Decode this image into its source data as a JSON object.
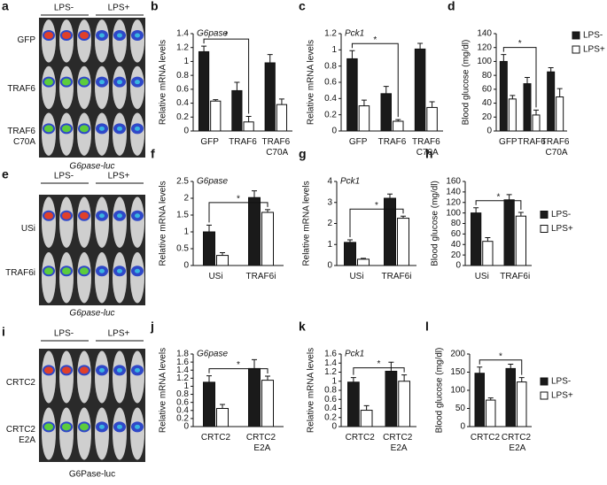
{
  "image_panels": [
    {
      "letter": "a",
      "groups": [
        "LPS-",
        "LPS+"
      ],
      "rows": [
        "GFP",
        "TRAF6",
        "TRAF6 C70A"
      ],
      "caption": "G6pase-luc"
    },
    {
      "letter": "e",
      "groups": [
        "LPS-",
        "LPS+"
      ],
      "rows": [
        "USi",
        "TRAF6i"
      ],
      "caption": "G6pase-luc"
    },
    {
      "letter": "i",
      "groups": [
        "LPS-",
        "LPS+"
      ],
      "rows": [
        "CRTC2",
        "CRTC2 E2A"
      ],
      "caption": "G6Pase-luc"
    }
  ],
  "chart_data": [
    {
      "type": "bar",
      "letter": "b",
      "title": "G6pase",
      "ylabel": "Relative mRNA levels",
      "categories": [
        "GFP",
        "TRAF6",
        "TRAF6 C70A"
      ],
      "series": [
        {
          "name": "LPS-",
          "color": "#1a1a1a",
          "values": [
            1.14,
            0.58,
            0.98
          ],
          "errors": [
            0.08,
            0.12,
            0.12
          ]
        },
        {
          "name": "LPS+",
          "color": "#ffffff",
          "values": [
            0.43,
            0.13,
            0.38
          ],
          "errors": [
            0.02,
            0.08,
            0.08
          ]
        }
      ],
      "ylim": [
        0,
        1.4
      ],
      "yticks": [
        0,
        0.2,
        0.4,
        0.6,
        0.8,
        1,
        1.2,
        1.4
      ],
      "annotation": "*"
    },
    {
      "type": "bar",
      "letter": "c",
      "title": "Pck1",
      "ylabel": "Relative mRNA levels",
      "categories": [
        "GFP",
        "TRAF6",
        "TRAF6 C70A"
      ],
      "series": [
        {
          "name": "LPS-",
          "color": "#1a1a1a",
          "values": [
            0.89,
            0.46,
            1.01
          ],
          "errors": [
            0.1,
            0.09,
            0.07
          ]
        },
        {
          "name": "LPS+",
          "color": "#ffffff",
          "values": [
            0.31,
            0.12,
            0.29
          ],
          "errors": [
            0.07,
            0.02,
            0.07
          ]
        }
      ],
      "ylim": [
        0,
        1.2
      ],
      "yticks": [
        0,
        0.2,
        0.4,
        0.6,
        0.8,
        1,
        1.2
      ],
      "annotation": "*"
    },
    {
      "type": "bar",
      "letter": "d",
      "ylabel": "Blood glucose (mg/dl)",
      "categories": [
        "GFP",
        "TRAF6",
        "TRAF6 C70A"
      ],
      "series": [
        {
          "name": "LPS-",
          "color": "#1a1a1a",
          "values": [
            100,
            68,
            85
          ],
          "errors": [
            10,
            9,
            6
          ]
        },
        {
          "name": "LPS+",
          "color": "#ffffff",
          "values": [
            46,
            23,
            49
          ],
          "errors": [
            5,
            7,
            12
          ]
        }
      ],
      "ylim": [
        0,
        140
      ],
      "yticks": [
        0,
        20,
        40,
        60,
        80,
        100,
        120,
        140
      ],
      "annotation": "*",
      "legend": "upper right"
    },
    {
      "type": "bar",
      "letter": "f",
      "title": "G6pase",
      "ylabel": "Relative mRNA levels",
      "categories": [
        "USi",
        "TRAF6i"
      ],
      "series": [
        {
          "name": "LPS-",
          "color": "#1a1a1a",
          "values": [
            1.0,
            2.02
          ],
          "errors": [
            0.2,
            0.2
          ]
        },
        {
          "name": "LPS+",
          "color": "#ffffff",
          "values": [
            0.3,
            1.58
          ],
          "errors": [
            0.08,
            0.08
          ]
        }
      ],
      "ylim": [
        0,
        2.5
      ],
      "yticks": [
        0,
        0.5,
        1,
        1.5,
        2,
        2.5
      ],
      "annotation": "*"
    },
    {
      "type": "bar",
      "letter": "g",
      "title": "Pck1",
      "ylabel": "Relative mRNA levels",
      "categories": [
        "USi",
        "TRAF6i"
      ],
      "series": [
        {
          "name": "LPS-",
          "color": "#1a1a1a",
          "values": [
            1.1,
            3.2
          ],
          "errors": [
            0.12,
            0.2
          ]
        },
        {
          "name": "LPS+",
          "color": "#ffffff",
          "values": [
            0.3,
            2.25
          ],
          "errors": [
            0.04,
            0.1
          ]
        }
      ],
      "ylim": [
        0,
        4
      ],
      "yticks": [
        0,
        1,
        2,
        3,
        4
      ],
      "annotation": "*"
    },
    {
      "type": "bar",
      "letter": "h",
      "ylabel": "Blood glucose (mg/dl)",
      "categories": [
        "USi",
        "TRAF6i"
      ],
      "series": [
        {
          "name": "LPS-",
          "color": "#1a1a1a",
          "values": [
            100,
            125
          ],
          "errors": [
            10,
            10
          ]
        },
        {
          "name": "LPS+",
          "color": "#ffffff",
          "values": [
            46,
            94
          ],
          "errors": [
            7,
            7
          ]
        }
      ],
      "ylim": [
        0,
        160
      ],
      "yticks": [
        0,
        20,
        40,
        60,
        80,
        100,
        120,
        140,
        160
      ],
      "annotation": "*",
      "legend": "right"
    },
    {
      "type": "bar",
      "letter": "j",
      "title": "G6pase",
      "ylabel": "Relative mRNA levels",
      "categories": [
        "CRTC2",
        "CRTC2 E2A"
      ],
      "series": [
        {
          "name": "LPS-",
          "color": "#1a1a1a",
          "values": [
            1.1,
            1.44
          ],
          "errors": [
            0.16,
            0.22
          ]
        },
        {
          "name": "LPS+",
          "color": "#ffffff",
          "values": [
            0.45,
            1.15
          ],
          "errors": [
            0.1,
            0.1
          ]
        }
      ],
      "ylim": [
        0,
        1.8
      ],
      "yticks": [
        0,
        0.2,
        0.4,
        0.6,
        0.8,
        1,
        1.2,
        1.4,
        1.6,
        1.8
      ],
      "annotation": "*"
    },
    {
      "type": "bar",
      "letter": "k",
      "title": "Pck1",
      "ylabel": "Relative mRNA levels",
      "categories": [
        "CRTC2",
        "CRTC2 E2A"
      ],
      "series": [
        {
          "name": "LPS-",
          "color": "#1a1a1a",
          "values": [
            0.98,
            1.22
          ],
          "errors": [
            0.1,
            0.2
          ]
        },
        {
          "name": "LPS+",
          "color": "#ffffff",
          "values": [
            0.36,
            1.0
          ],
          "errors": [
            0.1,
            0.14
          ]
        }
      ],
      "ylim": [
        0,
        1.6
      ],
      "yticks": [
        0,
        0.2,
        0.4,
        0.6,
        0.8,
        1,
        1.2,
        1.4,
        1.6
      ],
      "annotation": "*"
    },
    {
      "type": "bar",
      "letter": "l",
      "ylabel": "Blood glucose (mg/dl)",
      "categories": [
        "CRTC2",
        "CRTC2 E2A"
      ],
      "series": [
        {
          "name": "LPS-",
          "color": "#1a1a1a",
          "values": [
            147,
            160
          ],
          "errors": [
            17,
            12
          ]
        },
        {
          "name": "LPS+",
          "color": "#ffffff",
          "values": [
            73,
            123
          ],
          "errors": [
            6,
            12
          ]
        }
      ],
      "ylim": [
        0,
        200
      ],
      "yticks": [
        0,
        50,
        100,
        150,
        200
      ],
      "annotation": "*",
      "legend": "right"
    }
  ]
}
